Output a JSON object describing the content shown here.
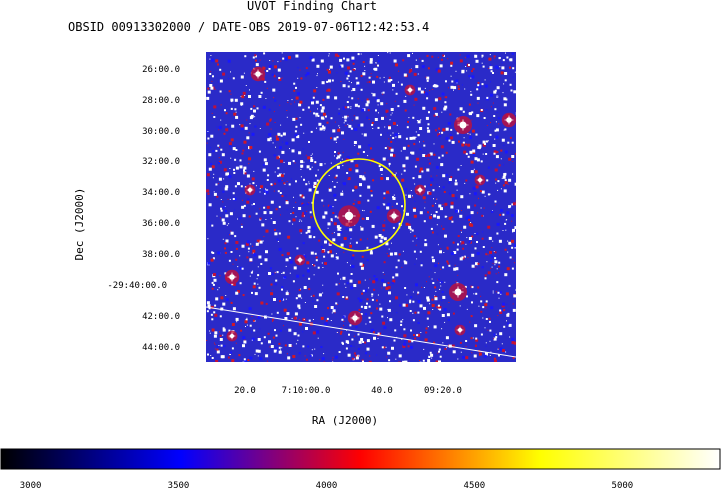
{
  "chart_data": {
    "type": "heatmap",
    "title": "UVOT Finding Chart",
    "subtitle": "OBSID 00913302000 / DATE-OBS 2019-07-06T12:42:53.4",
    "xlabel": "RA (J2000)",
    "ylabel": "Dec (J2000)",
    "x_ticks": [
      "20.0",
      "7:10:00.0",
      "40.0",
      "09:20.0"
    ],
    "y_ticks": [
      "26:00.0",
      "28:00.0",
      "30:00.0",
      "32:00.0",
      "34:00.0",
      "36:00.0",
      "38:00.0",
      "-29:40:00.0",
      "42:00.0",
      "44:00.0"
    ],
    "colorbar": {
      "ticks": [
        3000,
        3500,
        4000,
        4500,
        5000
      ],
      "range": [
        2900,
        5330
      ],
      "colors": [
        "#000000",
        "#0000ff",
        "#ff0000",
        "#ffff00",
        "#ffffff"
      ]
    },
    "source_marker": {
      "shape": "circle",
      "color": "#ffff00"
    },
    "background_color": "#2a2ac8"
  }
}
